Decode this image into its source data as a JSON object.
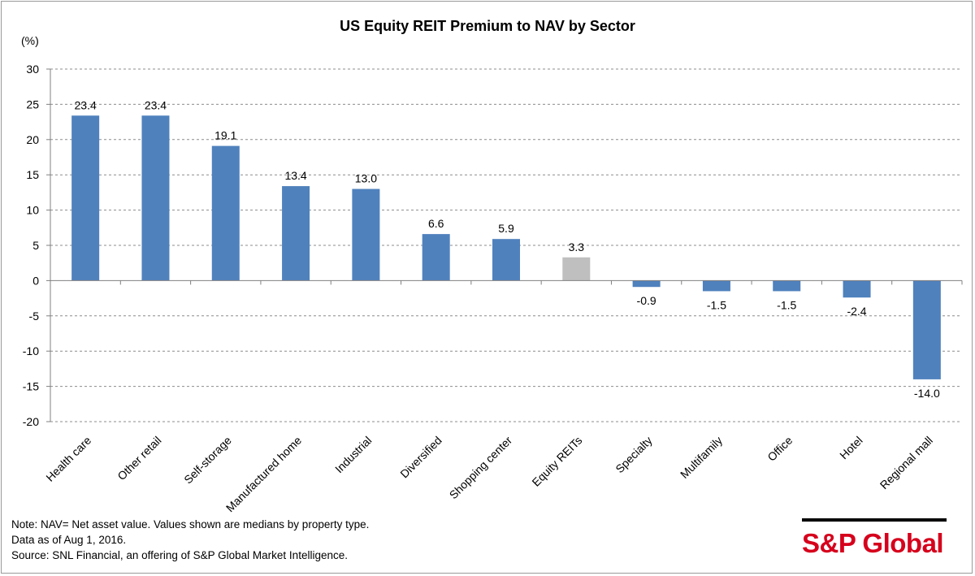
{
  "chart_data": {
    "type": "bar",
    "title": "US Equity REIT Premium to NAV by Sector",
    "ylabel": "(%)",
    "xlabel": "",
    "ylim": [
      -20,
      30
    ],
    "yticks": [
      30,
      25,
      20,
      15,
      10,
      5,
      0,
      -5,
      -10,
      -15,
      -20
    ],
    "grid": true,
    "categories": [
      "Health care",
      "Other retail",
      "Self-storage",
      "Manufactured home",
      "Industrial",
      "Diversified",
      "Shopping center",
      "Equity REITs",
      "Specialty",
      "Multifamily",
      "Office",
      "Hotel",
      "Regional mall"
    ],
    "values": [
      23.4,
      23.4,
      19.1,
      13.4,
      13.0,
      6.6,
      5.9,
      3.3,
      -0.9,
      -1.5,
      -1.5,
      -2.4,
      -14.0
    ],
    "data_labels": [
      "23.4",
      "23.4",
      "19.1",
      "13.4",
      "13.0",
      "6.6",
      "5.9",
      "3.3",
      "-0.9",
      "-1.5",
      "-1.5",
      "-2.4",
      "-14.0"
    ],
    "highlight_category": "Equity REITs",
    "colors": {
      "bar": "#4f81bd",
      "highlight": "#bfbfbf",
      "grid": "#8c8c8c",
      "axis": "#808080"
    }
  },
  "notes": [
    "Note: NAV= Net asset value. Values shown are medians by property type.",
    "Data as of Aug 1, 2016.",
    "Source: SNL Financial, an offering of S&P Global Market Intelligence."
  ],
  "logo": {
    "text": "S&P Global",
    "color": "#d6001c"
  }
}
